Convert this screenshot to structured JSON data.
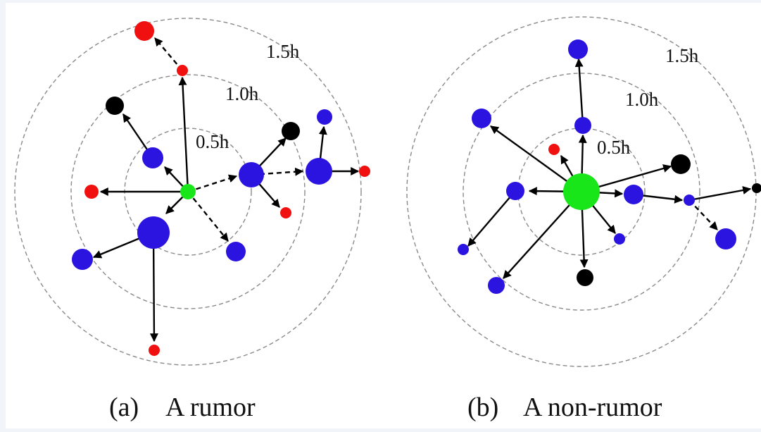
{
  "diagrams": [
    {
      "id": "a",
      "caption_tag": "(a)",
      "caption_text": "A rumor",
      "ring_labels": [
        "0.5h",
        "1.0h",
        "1.5h"
      ]
    },
    {
      "id": "b",
      "caption_tag": "(b)",
      "caption_text": "A non-rumor",
      "ring_labels": [
        "0.5h",
        "1.0h",
        "1.5h"
      ]
    }
  ],
  "colors": {
    "source": "#19e619",
    "blue": "#2b14e0",
    "red": "#f01010",
    "black": "#000000",
    "ring": "#8a8a8a"
  }
}
